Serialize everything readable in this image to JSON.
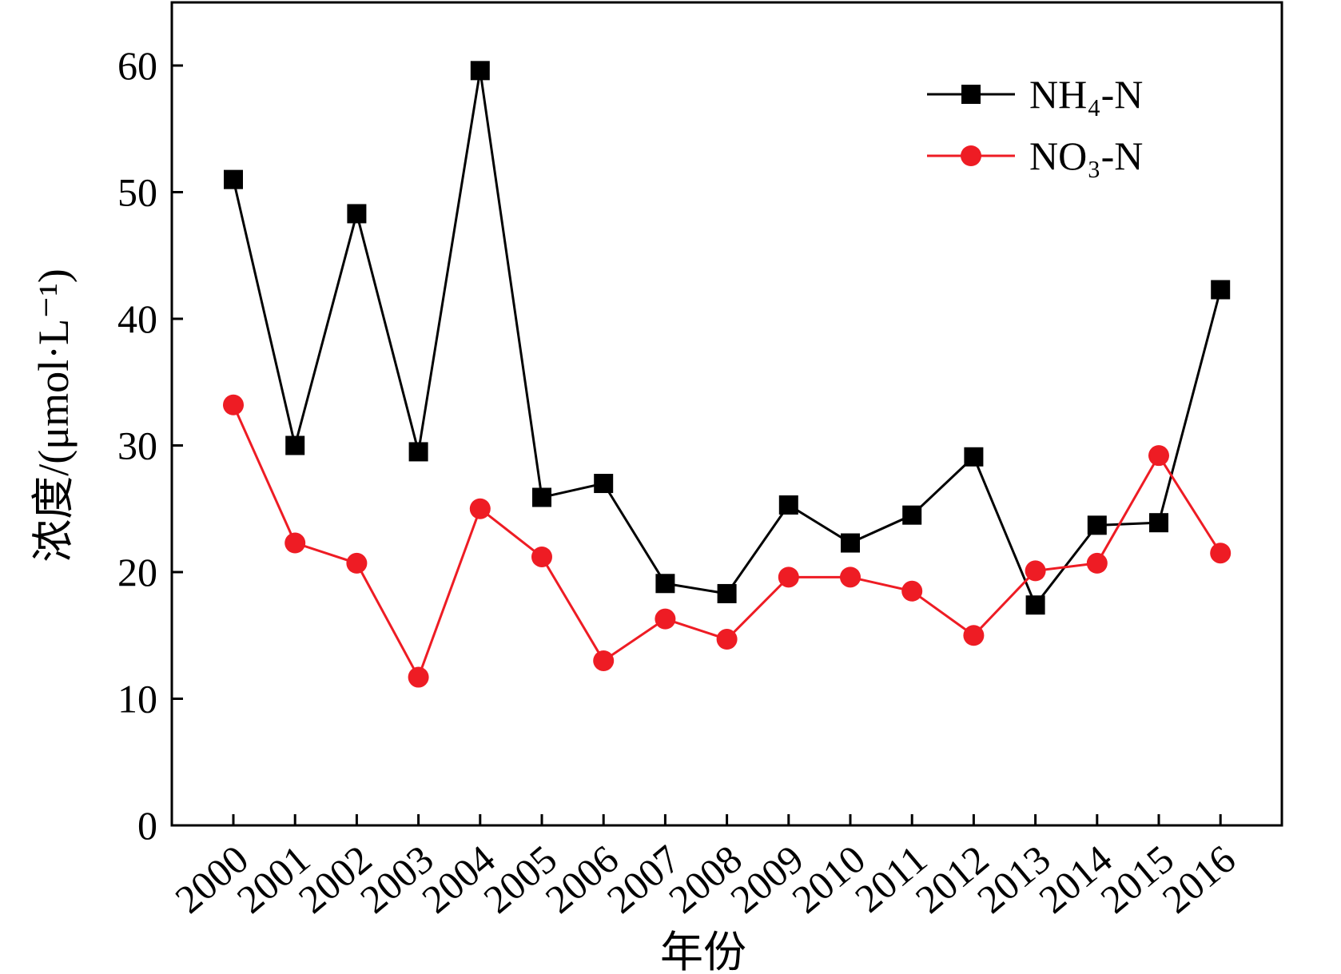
{
  "chart_data": {
    "type": "line",
    "xlabel": "年份",
    "ylabel": "浓度/(μmol·L⁻¹)",
    "ylim": [
      0,
      65
    ],
    "yticks": [
      0,
      10,
      20,
      30,
      40,
      50,
      60
    ],
    "grid": false,
    "legend_placement": "top-right",
    "categories": [
      "2000",
      "2001",
      "2002",
      "2003",
      "2004",
      "2005",
      "2006",
      "2007",
      "2008",
      "2009",
      "2010",
      "2011",
      "2012",
      "2013",
      "2014",
      "2015",
      "2016"
    ],
    "series": [
      {
        "name": "NH₄-N",
        "color": "#000000",
        "marker": "square",
        "values": [
          51.0,
          30.0,
          48.3,
          29.5,
          59.6,
          25.9,
          27.0,
          19.1,
          18.3,
          25.3,
          22.3,
          24.5,
          29.1,
          17.4,
          23.7,
          23.9,
          42.3
        ]
      },
      {
        "name": "NO₃-N",
        "color": "#ee1c24",
        "marker": "circle",
        "values": [
          33.2,
          22.3,
          20.7,
          11.7,
          25.0,
          21.2,
          13.0,
          16.3,
          14.7,
          19.6,
          19.6,
          18.5,
          15.0,
          20.1,
          20.7,
          29.2,
          21.5
        ]
      }
    ]
  }
}
